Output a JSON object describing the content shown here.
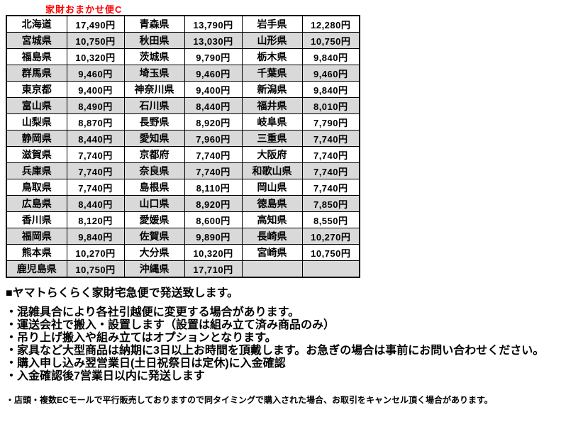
{
  "title": "家財おまかせ便C",
  "colors": {
    "title_red": "#ff0000",
    "row_shade": "#d9d9d9",
    "border": "#000000"
  },
  "shipping_table": {
    "columns": [
      "prefecture",
      "price",
      "prefecture",
      "price",
      "prefecture",
      "price"
    ],
    "rows": [
      [
        "北海道",
        "17,490円",
        "青森県",
        "13,790円",
        "岩手県",
        "12,280円"
      ],
      [
        "宮城県",
        "10,750円",
        "秋田県",
        "13,030円",
        "山形県",
        "10,750円"
      ],
      [
        "福島県",
        "10,320円",
        "茨城県",
        "9,790円",
        "栃木県",
        "9,840円"
      ],
      [
        "群馬県",
        "9,460円",
        "埼玉県",
        "9,460円",
        "千葉県",
        "9,460円"
      ],
      [
        "東京都",
        "9,400円",
        "神奈川県",
        "9,400円",
        "新潟県",
        "9,840円"
      ],
      [
        "富山県",
        "8,490円",
        "石川県",
        "8,440円",
        "福井県",
        "8,010円"
      ],
      [
        "山梨県",
        "8,870円",
        "長野県",
        "8,920円",
        "岐阜県",
        "7,790円"
      ],
      [
        "静岡県",
        "8,440円",
        "愛知県",
        "7,960円",
        "三重県",
        "7,740円"
      ],
      [
        "滋賀県",
        "7,740円",
        "京都府",
        "7,740円",
        "大阪府",
        "7,740円"
      ],
      [
        "兵庫県",
        "7,740円",
        "奈良県",
        "7,740円",
        "和歌山県",
        "7,740円"
      ],
      [
        "鳥取県",
        "7,740円",
        "島根県",
        "8,110円",
        "岡山県",
        "7,740円"
      ],
      [
        "広島県",
        "8,440円",
        "山口県",
        "8,920円",
        "徳島県",
        "7,850円"
      ],
      [
        "香川県",
        "8,120円",
        "愛媛県",
        "8,600円",
        "高知県",
        "8,550円"
      ],
      [
        "福岡県",
        "9,840円",
        "佐賀県",
        "9,890円",
        "長崎県",
        "10,270円"
      ],
      [
        "熊本県",
        "10,270円",
        "大分県",
        "10,320円",
        "宮崎県",
        "10,750円"
      ],
      [
        "鹿児島県",
        "10,750円",
        "沖縄県",
        "17,710円",
        "",
        ""
      ]
    ]
  },
  "notes": {
    "heading": "■ヤマトらくらく家財宅急便で発送致します。",
    "bullets": [
      "・混雑具合により各社引越便に変更する場合があります。",
      "・運送会社で搬入・設置します（設置は組み立て済み商品のみ）",
      "・吊り上げ搬入や組み立てはオプションとなります。",
      "・家具など大型商品は納期に3日以上お時間を頂戴します。お急ぎの場合は事前にお問い合わせください。",
      "・購入申し込み翌営業日(土日祝祭日は定休)に入金確認",
      "・入金確認後7営業日以内に発送します"
    ],
    "footnote": "・店頭・複数ECモールで平行販売しておりますので同タイミングで購入された場合、お取引をキャンセル頂く場合があります。"
  }
}
